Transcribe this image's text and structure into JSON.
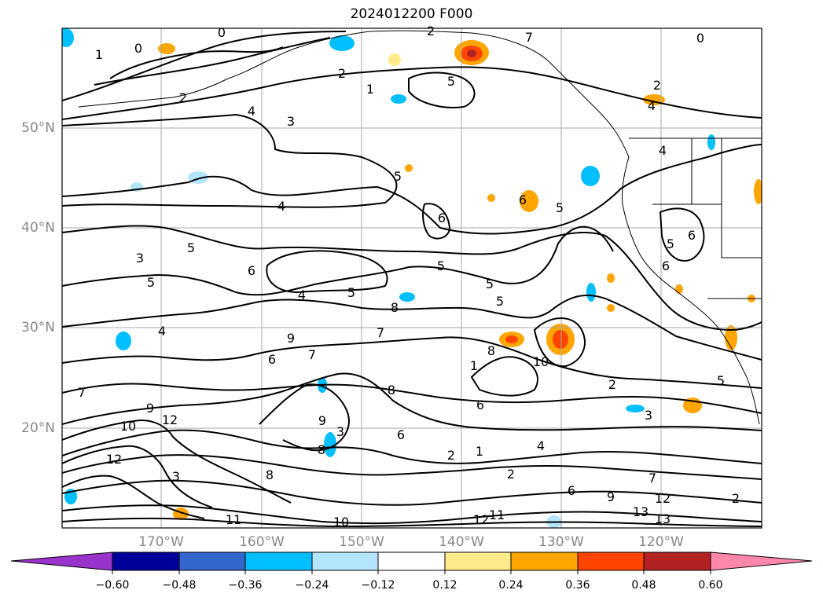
{
  "title": "2024012200 F000",
  "lat_labels": [
    "50°N",
    "40°N",
    "30°N",
    "20°N"
  ],
  "lon_labels": [
    "170°W",
    "160°W",
    "150°W",
    "140°W",
    "130°W",
    "120°W"
  ],
  "colorbar": {
    "colors": [
      "#9933cc",
      "#000099",
      "#3366cc",
      "#00bfff",
      "#b3e5fc",
      "#ffffff",
      "#ffeb8c",
      "#ffa500",
      "#ff4500",
      "#b22222",
      "#ff88aa"
    ],
    "labels": [
      "−0.60",
      "−0.48",
      "−0.36",
      "−0.24",
      "−0.12",
      "0.12",
      "0.24",
      "0.36",
      "0.48",
      "0.60"
    ]
  },
  "contour_labels": [
    "0",
    "1",
    "2",
    "3",
    "4",
    "5",
    "6",
    "7",
    "8",
    "9",
    "10",
    "11",
    "12",
    "13"
  ],
  "colors": {
    "grid": "#aaaaaa",
    "axis_label": "#888888",
    "contour": "#000000"
  }
}
